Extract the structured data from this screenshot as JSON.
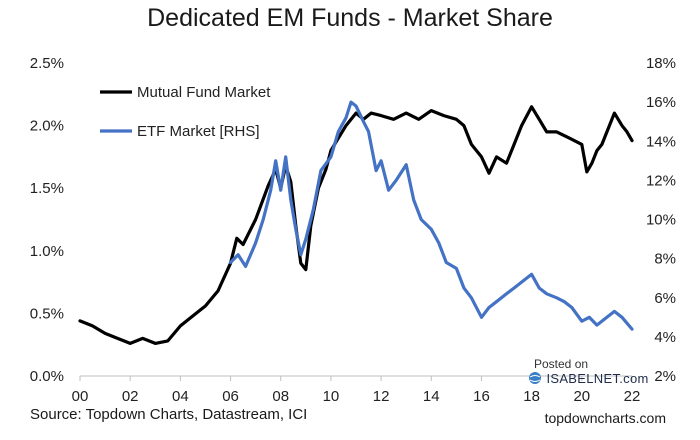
{
  "header": {
    "title": "Dedicated EM Funds - Market Share"
  },
  "footer": {
    "source": "Source: Topdown Charts, Datastream, ICI",
    "site": "topdowncharts.com",
    "posted_label": "Posted on",
    "badge_label": "ISABELNET.com"
  },
  "chart_data": {
    "type": "line",
    "title": "Dedicated EM Funds - Market Share",
    "x_ticks": [
      "00",
      "02",
      "04",
      "06",
      "08",
      "10",
      "12",
      "14",
      "16",
      "18",
      "20",
      "22"
    ],
    "x_range": [
      2000,
      2022
    ],
    "y_left": {
      "range": [
        0,
        2.5
      ],
      "ticks": [
        "0.0%",
        "0.5%",
        "1.0%",
        "1.5%",
        "2.0%",
        "2.5%"
      ]
    },
    "y_right": {
      "range": [
        2,
        18
      ],
      "ticks": [
        "2%",
        "4%",
        "6%",
        "8%",
        "10%",
        "12%",
        "14%",
        "16%",
        "18%"
      ]
    },
    "grid": false,
    "legend_position": "top-left",
    "series": [
      {
        "name": "Mutual Fund Market",
        "axis": "left",
        "color": "#000000",
        "x": [
          2000.0,
          2000.5,
          2001.0,
          2001.5,
          2002.0,
          2002.5,
          2003.0,
          2003.5,
          2004.0,
          2004.5,
          2005.0,
          2005.5,
          2006.0,
          2006.25,
          2006.5,
          2007.0,
          2007.5,
          2007.8,
          2008.0,
          2008.2,
          2008.4,
          2008.6,
          2008.8,
          2009.0,
          2009.2,
          2009.5,
          2009.8,
          2010.0,
          2010.3,
          2010.6,
          2011.0,
          2011.3,
          2011.6,
          2012.0,
          2012.5,
          2013.0,
          2013.5,
          2014.0,
          2014.5,
          2015.0,
          2015.3,
          2015.6,
          2016.0,
          2016.3,
          2016.6,
          2017.0,
          2017.3,
          2017.6,
          2018.0,
          2018.3,
          2018.6,
          2019.0,
          2019.5,
          2020.0,
          2020.2,
          2020.4,
          2020.6,
          2020.8,
          2021.0,
          2021.3,
          2021.6,
          2021.8,
          2022.0
        ],
        "values": [
          0.44,
          0.4,
          0.34,
          0.3,
          0.26,
          0.3,
          0.26,
          0.28,
          0.4,
          0.48,
          0.56,
          0.68,
          0.9,
          1.1,
          1.05,
          1.25,
          1.52,
          1.65,
          1.5,
          1.68,
          1.55,
          1.2,
          0.9,
          0.85,
          1.2,
          1.5,
          1.65,
          1.8,
          1.9,
          2.0,
          2.1,
          2.05,
          2.1,
          2.08,
          2.05,
          2.1,
          2.05,
          2.12,
          2.08,
          2.05,
          2.0,
          1.85,
          1.75,
          1.62,
          1.75,
          1.7,
          1.85,
          2.0,
          2.15,
          2.05,
          1.95,
          1.95,
          1.9,
          1.85,
          1.63,
          1.7,
          1.8,
          1.85,
          1.95,
          2.1,
          2.0,
          1.95,
          1.88
        ]
      },
      {
        "name": "ETF Market [RHS]",
        "axis": "right",
        "color": "#4472c4",
        "x": [
          2006.0,
          2006.3,
          2006.6,
          2007.0,
          2007.3,
          2007.6,
          2007.8,
          2008.0,
          2008.2,
          2008.4,
          2008.6,
          2008.8,
          2009.0,
          2009.3,
          2009.6,
          2010.0,
          2010.3,
          2010.6,
          2010.8,
          2011.0,
          2011.3,
          2011.5,
          2011.8,
          2012.0,
          2012.3,
          2012.6,
          2013.0,
          2013.3,
          2013.6,
          2014.0,
          2014.3,
          2014.6,
          2015.0,
          2015.3,
          2015.6,
          2016.0,
          2016.3,
          2016.6,
          2017.0,
          2017.3,
          2017.6,
          2018.0,
          2018.3,
          2018.6,
          2019.0,
          2019.3,
          2019.6,
          2020.0,
          2020.3,
          2020.6,
          2021.0,
          2021.3,
          2021.6,
          2022.0
        ],
        "values": [
          7.8,
          8.2,
          7.6,
          8.8,
          10.0,
          11.5,
          13.0,
          11.5,
          13.2,
          11.0,
          9.5,
          8.2,
          9.0,
          10.5,
          12.5,
          13.2,
          14.5,
          15.2,
          16.0,
          15.8,
          15.0,
          14.5,
          12.5,
          13.0,
          11.5,
          12.0,
          12.8,
          11.0,
          10.0,
          9.5,
          8.8,
          7.8,
          7.5,
          6.5,
          6.0,
          5.0,
          5.5,
          5.8,
          6.2,
          6.5,
          6.8,
          7.2,
          6.5,
          6.2,
          6.0,
          5.8,
          5.5,
          4.8,
          5.0,
          4.6,
          5.0,
          5.3,
          5.0,
          4.4
        ]
      }
    ]
  }
}
